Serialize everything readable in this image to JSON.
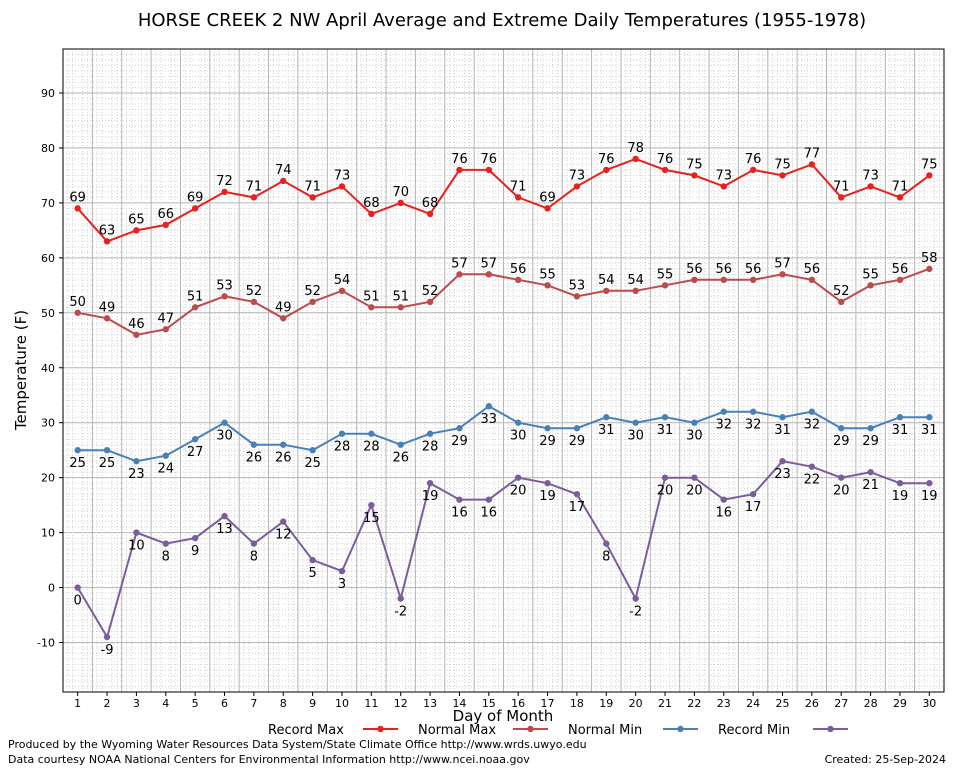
{
  "footer": {
    "produced_by": "Produced by the Wyoming Water Resources Data System/State Climate Office http://www.wrds.uwyo.edu",
    "data_courtesy": "Data courtesy NOAA National Centers for Environmental Information http://www.ncei.noaa.gov",
    "created": "Created:  25-Sep-2024"
  },
  "chart_data": {
    "type": "line",
    "title": "HORSE CREEK 2 NW April Average and Extreme Daily Temperatures (1955-1978)",
    "xlabel": "Day of Month",
    "ylabel": "Temperature (F)",
    "x": [
      1,
      2,
      3,
      4,
      5,
      6,
      7,
      8,
      9,
      10,
      11,
      12,
      13,
      14,
      15,
      16,
      17,
      18,
      19,
      20,
      21,
      22,
      23,
      24,
      25,
      26,
      27,
      28,
      29,
      30
    ],
    "xlim": [
      0.5,
      30.5
    ],
    "ylim": [
      -19,
      98
    ],
    "yticks": [
      -10,
      0,
      10,
      20,
      30,
      40,
      50,
      60,
      70,
      80,
      90
    ],
    "grid": true,
    "legend": "bottom",
    "series": [
      {
        "name": "Record Max",
        "color": "#e8211e",
        "label_pos": "above",
        "values": [
          69,
          63,
          65,
          66,
          69,
          72,
          71,
          74,
          71,
          73,
          68,
          70,
          68,
          76,
          76,
          71,
          69,
          73,
          76,
          78,
          76,
          75,
          73,
          76,
          75,
          77,
          71,
          73,
          71,
          75
        ]
      },
      {
        "name": "Normal Max",
        "color": "#bc4b4d",
        "label_pos": "above",
        "values": [
          50,
          49,
          46,
          47,
          51,
          53,
          52,
          49,
          52,
          54,
          51,
          51,
          52,
          57,
          57,
          56,
          55,
          53,
          54,
          54,
          55,
          56,
          56,
          56,
          57,
          56,
          52,
          55,
          56,
          58
        ]
      },
      {
        "name": "Normal Min",
        "color": "#4a80b9",
        "label_pos": "below",
        "values": [
          25,
          25,
          23,
          24,
          27,
          30,
          26,
          26,
          25,
          28,
          28,
          26,
          28,
          29,
          33,
          30,
          29,
          29,
          31,
          30,
          31,
          30,
          32,
          32,
          31,
          32,
          29,
          29,
          31,
          31
        ]
      },
      {
        "name": "Record Min",
        "color": "#7d5c9c",
        "label_pos": "below",
        "values": [
          0,
          -9,
          10,
          8,
          9,
          13,
          8,
          12,
          5,
          3,
          15,
          -2,
          19,
          16,
          16,
          20,
          19,
          17,
          8,
          -2,
          20,
          20,
          16,
          17,
          23,
          22,
          20,
          21,
          19,
          19
        ]
      }
    ]
  }
}
